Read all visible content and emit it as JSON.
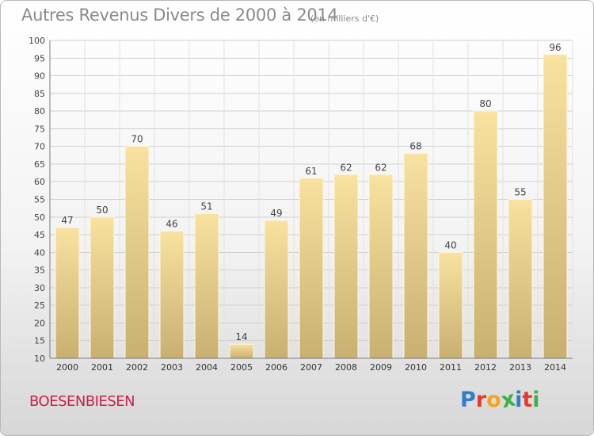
{
  "header": {
    "title": "Autres Revenus Divers de 2000 à 2014",
    "subtitle": "(en milliers d'€)"
  },
  "footer": {
    "place": "BOESENBIESEN",
    "logo_letters": [
      "P",
      "r",
      "o",
      "x",
      "i",
      "t",
      "i"
    ]
  },
  "colors": {
    "place": "#c7224a",
    "bar_light": "#f8e2a0",
    "bar_dark": "#c8b070",
    "logo": [
      "#2f7fc8",
      "#e8392f",
      "#f6a51a",
      "#3db14a",
      "#2f7fc8",
      "#e8392f",
      "#3db14a"
    ]
  },
  "chart_data": {
    "type": "bar",
    "categories": [
      "2000",
      "2001",
      "2002",
      "2003",
      "2004",
      "2005",
      "2006",
      "2007",
      "2008",
      "2009",
      "2010",
      "2011",
      "2012",
      "2013",
      "2014"
    ],
    "values": [
      47,
      50,
      70,
      46,
      51,
      14,
      49,
      61,
      62,
      62,
      68,
      40,
      80,
      55,
      96
    ],
    "title": "Autres Revenus Divers de 2000 à 2014",
    "subtitle": "(en milliers d'€)",
    "xlabel": "",
    "ylabel": "",
    "ylim": [
      10,
      100
    ],
    "yticks": [
      10,
      15,
      20,
      25,
      30,
      35,
      40,
      45,
      50,
      55,
      60,
      65,
      70,
      75,
      80,
      85,
      90,
      95,
      100
    ],
    "grid": true,
    "data_labels": true,
    "legend": "none"
  }
}
